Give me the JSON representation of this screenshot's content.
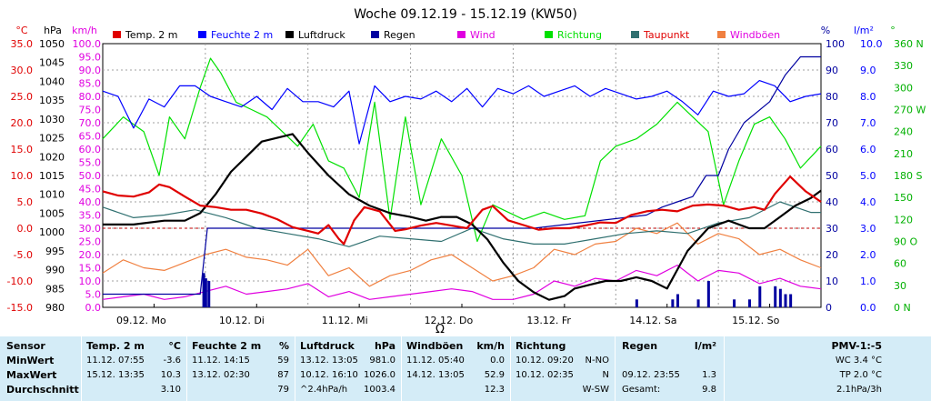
{
  "title": "Woche 09.12.19 - 15.12.19 (KW50)",
  "colors": {
    "temp": "#e00000",
    "feuchte": "#0000ff",
    "luftdruck": "#000000",
    "regen": "#0000a0",
    "wind": "#e000e0",
    "richtung": "#00e000",
    "taupunkt": "#307070",
    "windboeen": "#f08040",
    "grid": "#a0a0a0"
  },
  "axes": {
    "temp_unit": "°C",
    "hpa_unit": "hPa",
    "kmh_unit": "km/h",
    "pct_unit": "%",
    "lm2_unit": "l/m²",
    "deg_unit": "°",
    "temp_ticks": [
      "35.0",
      "30.0",
      "25.0",
      "20.0",
      "15.0",
      "10.0",
      "5.0",
      "0.0",
      "-5.0",
      "-10.0",
      "-15.0"
    ],
    "hpa_ticks": [
      "1050",
      "1045",
      "1040",
      "1035",
      "1030",
      "1025",
      "1020",
      "1015",
      "1010",
      "1005",
      "1000",
      "995",
      "990",
      "985",
      "980"
    ],
    "kmh_ticks": [
      "100.0",
      "95.0",
      "90.0",
      "85.0",
      "80.0",
      "75.0",
      "70.0",
      "65.0",
      "60.0",
      "55.0",
      "50.0",
      "45.0",
      "40.0",
      "35.0",
      "30.0",
      "25.0",
      "20.0",
      "15.0",
      "10.0",
      "5.0",
      "0.0"
    ],
    "pct_ticks": [
      "100",
      "90",
      "80",
      "70",
      "60",
      "50",
      "40",
      "30",
      "20",
      "10",
      "0"
    ],
    "lm2_ticks": [
      "10.0",
      "9.0",
      "8.0",
      "7.0",
      "6.0",
      "5.0",
      "4.0",
      "3.0",
      "2.0",
      "1.0",
      "0.0"
    ],
    "dir_ticks": [
      "360 N",
      "330",
      "300",
      "270 W",
      "240",
      "210",
      "180 S",
      "150",
      "120",
      "90 O",
      "60",
      "30",
      "0 N"
    ]
  },
  "days": [
    "09.12. Mo",
    "10.12. Di",
    "11.12. Mi",
    "12.12. Do",
    "13.12. Fr",
    "14.12. Sa",
    "15.12. So"
  ],
  "moon_symbol": "Ω",
  "chart_data": {
    "type": "line",
    "title": "Woche 09.12.19 - 15.12.19 (KW50)",
    "x_unit": "days since 09.12.19 00:00",
    "xlim": [
      0,
      7
    ],
    "ylim_temp": [
      -15,
      35
    ],
    "ylim_hpa": [
      980,
      1050
    ],
    "ylim_kmh": [
      0,
      100
    ],
    "ylim_pct": [
      0,
      100
    ],
    "ylim_lm2": [
      0,
      10
    ],
    "ylim_dir": [
      0,
      360
    ],
    "series": [
      {
        "key": "temp",
        "name": "Temp. 2 m",
        "axis": "temp",
        "x": [
          0,
          0.15,
          0.3,
          0.45,
          0.55,
          0.65,
          0.8,
          0.95,
          1.1,
          1.25,
          1.4,
          1.55,
          1.7,
          1.85,
          2.0,
          2.1,
          2.2,
          2.3,
          2.35,
          2.45,
          2.55,
          2.7,
          2.85,
          2.95,
          3.1,
          3.25,
          3.4,
          3.55,
          3.7,
          3.8,
          3.95,
          4.1,
          4.25,
          4.4,
          4.55,
          4.7,
          4.85,
          5.0,
          5.15,
          5.3,
          5.45,
          5.6,
          5.75,
          5.9,
          6.05,
          6.2,
          6.35,
          6.45,
          6.55,
          6.7,
          6.85,
          7.0
        ],
        "y": [
          7,
          6.2,
          6,
          6.8,
          8.3,
          7.8,
          6,
          4.3,
          4,
          3.5,
          3.5,
          2.8,
          1.7,
          0.2,
          -0.5,
          -1,
          0.6,
          -2,
          -3,
          1.5,
          4,
          3.2,
          -0.5,
          -0.2,
          0.5,
          1,
          0.5,
          0,
          3.5,
          4.2,
          1.5,
          0.6,
          -0.3,
          0,
          0,
          0.5,
          1.1,
          1,
          2.5,
          3.2,
          3.5,
          3.2,
          4.3,
          4.5,
          4.3,
          3.5,
          4,
          3.5,
          6.5,
          9.8,
          7,
          5
        ]
      },
      {
        "key": "feuchte",
        "name": "Feuchte 2 m",
        "axis": "pct",
        "x": [
          0,
          0.15,
          0.3,
          0.45,
          0.6,
          0.75,
          0.9,
          1.05,
          1.2,
          1.35,
          1.5,
          1.65,
          1.8,
          1.95,
          2.1,
          2.25,
          2.4,
          2.5,
          2.65,
          2.8,
          2.95,
          3.1,
          3.25,
          3.4,
          3.55,
          3.7,
          3.85,
          4.0,
          4.15,
          4.3,
          4.45,
          4.6,
          4.75,
          4.9,
          5.05,
          5.2,
          5.35,
          5.5,
          5.65,
          5.8,
          5.95,
          6.1,
          6.25,
          6.4,
          6.55,
          6.7,
          6.85,
          7.0
        ],
        "y": [
          82,
          80,
          68,
          79,
          76,
          84,
          84,
          80,
          78,
          76,
          80,
          75,
          83,
          78,
          78,
          76,
          82,
          62,
          84,
          78,
          80,
          79,
          82,
          78,
          83,
          76,
          83,
          81,
          84,
          80,
          82,
          84,
          80,
          83,
          81,
          79,
          80,
          82,
          78,
          73,
          82,
          80,
          81,
          86,
          84,
          78,
          80,
          81
        ]
      },
      {
        "key": "luftdruck",
        "name": "Luftdruck",
        "axis": "hpa",
        "x": [
          0,
          0.3,
          0.6,
          0.8,
          0.95,
          1.1,
          1.25,
          1.4,
          1.55,
          1.7,
          1.85,
          2.0,
          2.2,
          2.4,
          2.6,
          2.8,
          3.0,
          3.15,
          3.3,
          3.45,
          3.6,
          3.75,
          3.9,
          4.05,
          4.2,
          4.35,
          4.5,
          4.6,
          4.75,
          4.9,
          5.05,
          5.2,
          5.35,
          5.5,
          5.6,
          5.7,
          5.8,
          5.9,
          6.0,
          6.1,
          6.2,
          6.3,
          6.45,
          6.6,
          6.75,
          6.9,
          7.0
        ],
        "y": [
          1002,
          1002,
          1003,
          1003,
          1005,
          1010,
          1016,
          1020,
          1024,
          1025,
          1026,
          1021,
          1015,
          1010,
          1007,
          1005,
          1004,
          1003,
          1004,
          1004,
          1002,
          998,
          992,
          987,
          984,
          982,
          983,
          985,
          986,
          987,
          987,
          988,
          987,
          985,
          990,
          995,
          998,
          1001,
          1002,
          1003,
          1002,
          1001,
          1001,
          1004,
          1007,
          1009,
          1011
        ]
      },
      {
        "key": "regen",
        "name": "Regen",
        "axis": "lm2",
        "x": [
          0,
          0.95,
          1.02,
          1.1,
          3.2,
          4.2,
          5.3,
          5.45,
          5.6,
          5.75,
          5.88,
          6.0,
          6.1,
          6.25,
          6.5,
          6.65,
          6.8,
          7.0
        ],
        "y": [
          0.5,
          0.5,
          3.0,
          3.0,
          3.0,
          3.0,
          3.5,
          3.8,
          4.0,
          4.2,
          5.0,
          5.0,
          6.0,
          7.0,
          7.8,
          8.8,
          9.5,
          9.5
        ]
      },
      {
        "key": "wind",
        "name": "Wind",
        "axis": "kmh",
        "x": [
          0,
          0.2,
          0.4,
          0.6,
          0.8,
          1.0,
          1.2,
          1.4,
          1.6,
          1.8,
          2.0,
          2.2,
          2.4,
          2.6,
          2.8,
          3.0,
          3.2,
          3.4,
          3.6,
          3.8,
          4.0,
          4.2,
          4.4,
          4.6,
          4.8,
          5.0,
          5.2,
          5.4,
          5.6,
          5.8,
          6.0,
          6.2,
          6.4,
          6.6,
          6.8,
          7.0
        ],
        "y": [
          3,
          4,
          5,
          3,
          4,
          6,
          8,
          5,
          6,
          7,
          9,
          4,
          6,
          3,
          4,
          5,
          6,
          7,
          6,
          3,
          3,
          5,
          10,
          8,
          11,
          10,
          14,
          12,
          16,
          10,
          14,
          13,
          9,
          11,
          8,
          7
        ]
      },
      {
        "key": "taupunkt",
        "name": "Taupunkt",
        "axis": "temp",
        "x": [
          0,
          0.3,
          0.6,
          0.9,
          1.2,
          1.5,
          1.8,
          2.1,
          2.4,
          2.7,
          3.0,
          3.3,
          3.6,
          3.9,
          4.2,
          4.5,
          4.8,
          5.1,
          5.4,
          5.7,
          6.0,
          6.3,
          6.6,
          6.9,
          7.0
        ],
        "y": [
          4,
          2,
          2.5,
          3.5,
          2,
          0,
          -1,
          -2,
          -3.5,
          -1.5,
          -2,
          -2.5,
          0,
          -2,
          -3,
          -3,
          -2,
          -1,
          -0.5,
          -1,
          1,
          2,
          5,
          3,
          3
        ]
      },
      {
        "key": "windboeen",
        "name": "Windböen",
        "axis": "kmh",
        "x": [
          0,
          0.2,
          0.4,
          0.6,
          0.8,
          1.0,
          1.2,
          1.4,
          1.6,
          1.8,
          2.0,
          2.2,
          2.4,
          2.6,
          2.8,
          3.0,
          3.2,
          3.4,
          3.6,
          3.8,
          4.0,
          4.2,
          4.4,
          4.6,
          4.8,
          5.0,
          5.2,
          5.4,
          5.6,
          5.8,
          6.0,
          6.2,
          6.4,
          6.6,
          6.8,
          7.0
        ],
        "y": [
          13,
          18,
          15,
          14,
          17,
          20,
          22,
          19,
          18,
          16,
          22,
          12,
          15,
          8,
          12,
          14,
          18,
          20,
          15,
          10,
          12,
          15,
          22,
          20,
          24,
          25,
          30,
          28,
          32,
          24,
          28,
          26,
          20,
          22,
          18,
          15
        ]
      },
      {
        "key": "richtung",
        "name": "Richtung",
        "axis": "dir",
        "x": [
          0,
          0.2,
          0.4,
          0.55,
          0.65,
          0.8,
          0.95,
          1.05,
          1.15,
          1.3,
          1.45,
          1.6,
          1.75,
          1.9,
          2.05,
          2.2,
          2.35,
          2.5,
          2.65,
          2.8,
          2.95,
          3.1,
          3.3,
          3.5,
          3.65,
          3.8,
          3.95,
          4.1,
          4.3,
          4.5,
          4.7,
          4.85,
          5.0,
          5.2,
          5.4,
          5.6,
          5.75,
          5.9,
          6.05,
          6.2,
          6.35,
          6.5,
          6.65,
          6.8,
          7.0
        ],
        "y": [
          230,
          260,
          240,
          180,
          260,
          230,
          300,
          340,
          320,
          280,
          270,
          260,
          240,
          220,
          250,
          200,
          190,
          150,
          280,
          120,
          260,
          140,
          230,
          180,
          90,
          140,
          130,
          120,
          130,
          120,
          125,
          200,
          220,
          230,
          250,
          280,
          260,
          240,
          140,
          200,
          250,
          260,
          230,
          190,
          220
        ]
      }
    ],
    "rain_bars": {
      "name": "Regen",
      "axis": "lm2",
      "x": [
        0.98,
        1.0,
        1.03,
        5.2,
        5.55,
        5.6,
        5.8,
        5.9,
        6.15,
        6.3,
        6.4,
        6.55,
        6.6,
        6.65,
        6.7
      ],
      "y": [
        1.3,
        1.1,
        1.0,
        0.3,
        0.3,
        0.5,
        0.3,
        1.0,
        0.3,
        0.3,
        0.8,
        0.8,
        0.7,
        0.5,
        0.5
      ]
    }
  },
  "stats": {
    "sensor": {
      "header": "Sensor",
      "min": "MinWert",
      "max": "MaxWert",
      "avg": "Durchschnitt"
    },
    "temp": {
      "header": "Temp. 2 m",
      "unit": "°C",
      "min_time": "11.12.  07:55",
      "min": "-3.6",
      "max_time": "15.12.  13:35",
      "max": "10.3",
      "avg": "3.10"
    },
    "feuchte": {
      "header": "Feuchte  2 m",
      "unit": "%",
      "min_time": "11.12.  14:15",
      "min": "59",
      "max_time": "13.12.  02:30",
      "max": "87",
      "avg": "79"
    },
    "luftdruck": {
      "header": "Luftdruck",
      "unit": "hPa",
      "min_time": "13.12.  13:05",
      "min": "981.0",
      "max_time": "10.12.  16:10",
      "max": "1026.0",
      "avg_trend": "^2.4hPa/h",
      "avg": "1003.4"
    },
    "windboeen": {
      "header": "Windböen",
      "unit": "km/h",
      "min_time": "11.12.  05:40",
      "min": "0.0",
      "max_time": "14.12.  13:05",
      "max": "52.9",
      "avg": "12.3"
    },
    "richtung": {
      "header": "Richtung",
      "min_time": "10.12.  09:20",
      "min": "N-NO",
      "max_time": "10.12.  02:35",
      "max": "N",
      "avg": "W-SW"
    },
    "regen": {
      "header": "Regen",
      "unit": "l/m²",
      "max_time": "09.12.  23:55",
      "max": "1.3",
      "total_label": "Gesamt:",
      "total": "9.8"
    },
    "pmv": {
      "header": "PMV-1:-5",
      "wc": "WC 3.4 °C",
      "tp": "TP 2.0 °C",
      "trend": "2.1hPa/3h"
    }
  }
}
